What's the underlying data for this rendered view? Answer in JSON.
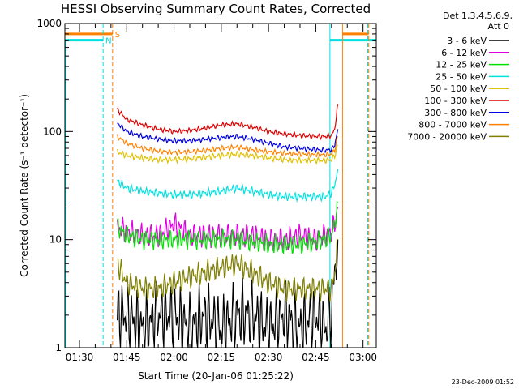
{
  "chart_data": {
    "type": "line",
    "title": "HESSI Observing Summary Count Rates, Corrected",
    "xlabel": "Start Time (20-Jan-06 01:25:22)",
    "ylabel": "Corrected Count Rate (s⁻¹ detector⁻¹)",
    "y_scale": "log",
    "ylim": [
      1,
      1000
    ],
    "y_ticks": [
      "1",
      "10",
      "100",
      "1000"
    ],
    "x_ticks": [
      "01:30",
      "01:45",
      "02:00",
      "02:15",
      "02:30",
      "02:45",
      "03:00"
    ],
    "x_tick_minutes": [
      30,
      45,
      60,
      75,
      90,
      105,
      120
    ],
    "xlim_minutes": [
      25.37,
      124.2
    ],
    "legend_header": [
      "Det 1,3,4,5,6,9,",
      "Att 0"
    ],
    "legend_position": "right",
    "timestamp": "23-Dec-2009 01:52",
    "markers": [
      {
        "label": "S",
        "color": "#ff8000",
        "start_minutes": 25.4,
        "end_minutes": 40.5,
        "level": 800
      },
      {
        "label": "N",
        "color": "#00e0e0",
        "start_minutes": 25.4,
        "end_minutes": 37.5,
        "level": 700
      }
    ],
    "vlines": [
      {
        "minute": 37.5,
        "color": "#00e0e0",
        "dashed": true
      },
      {
        "minute": 40.5,
        "color": "#ff8000",
        "dashed": true
      },
      {
        "minute": 109.5,
        "color": "#00e0e0",
        "dashed": false
      },
      {
        "minute": 113.5,
        "color": "#ff8000",
        "dashed": false
      },
      {
        "minute": 121.5,
        "color": "#00e0e0",
        "dashed": true
      },
      {
        "minute": 121.8,
        "color": "#ff8000",
        "dashed": true
      }
    ],
    "post_markers": [
      {
        "color": "#ff8000",
        "start_minutes": 113.5,
        "end_minutes": 121.8,
        "level": 800
      },
      {
        "color": "#00e0e0",
        "start_minutes": 109.5,
        "end_minutes": 124.2,
        "level": 700
      }
    ],
    "x": [
      42,
      45,
      50,
      55,
      60,
      65,
      70,
      75,
      80,
      85,
      90,
      95,
      100,
      105,
      108,
      110,
      111,
      112
    ],
    "series": [
      {
        "name": "3 - 6 keV",
        "color": "#000000",
        "values": [
          2,
          2,
          1.5,
          2,
          2,
          1.5,
          2,
          1.5,
          2,
          2,
          1.5,
          2,
          1.5,
          2,
          1.5,
          2,
          5,
          10
        ]
      },
      {
        "name": "6 - 12 keV",
        "color": "#e000e0",
        "values": [
          13,
          12,
          11,
          11,
          14,
          11,
          11,
          11,
          11,
          11,
          10,
          10,
          11,
          10,
          11,
          12,
          14,
          20
        ]
      },
      {
        "name": "12 - 25 keV",
        "color": "#00e000",
        "values": [
          13,
          11,
          10,
          10,
          10,
          10,
          10,
          10,
          10,
          9.5,
          9,
          9,
          9,
          9.5,
          10,
          11,
          14,
          22
        ]
      },
      {
        "name": "25 - 50 keV",
        "color": "#00e0e0",
        "values": [
          35,
          30,
          28,
          27,
          26,
          26,
          27,
          28,
          30,
          28,
          26,
          25,
          25,
          25,
          25,
          27,
          32,
          45
        ]
      },
      {
        "name": "50 - 100 keV",
        "color": "#e0c000",
        "values": [
          65,
          60,
          57,
          55,
          55,
          56,
          58,
          60,
          62,
          60,
          57,
          55,
          54,
          54,
          54,
          55,
          60,
          75
        ]
      },
      {
        "name": "100 - 300 keV",
        "color": "#e00000",
        "values": [
          160,
          130,
          115,
          105,
          100,
          102,
          108,
          115,
          118,
          110,
          100,
          95,
          92,
          90,
          90,
          92,
          105,
          180
        ]
      },
      {
        "name": "300 - 800 keV",
        "color": "#0000e0",
        "values": [
          120,
          100,
          90,
          85,
          82,
          82,
          85,
          88,
          90,
          85,
          78,
          72,
          70,
          68,
          67,
          68,
          75,
          105
        ]
      },
      {
        "name": "800 - 7000 keV",
        "color": "#ff8000",
        "values": [
          90,
          78,
          70,
          66,
          64,
          65,
          67,
          70,
          72,
          68,
          65,
          63,
          62,
          61,
          61,
          62,
          68,
          90
        ]
      },
      {
        "name": "7000 - 20000 keV",
        "color": "#808000",
        "values": [
          6,
          4,
          3.5,
          3.5,
          4,
          4.5,
          5,
          5.5,
          6,
          5,
          4,
          3.5,
          3.5,
          3.5,
          3.5,
          3.5,
          5,
          10
        ]
      }
    ]
  }
}
